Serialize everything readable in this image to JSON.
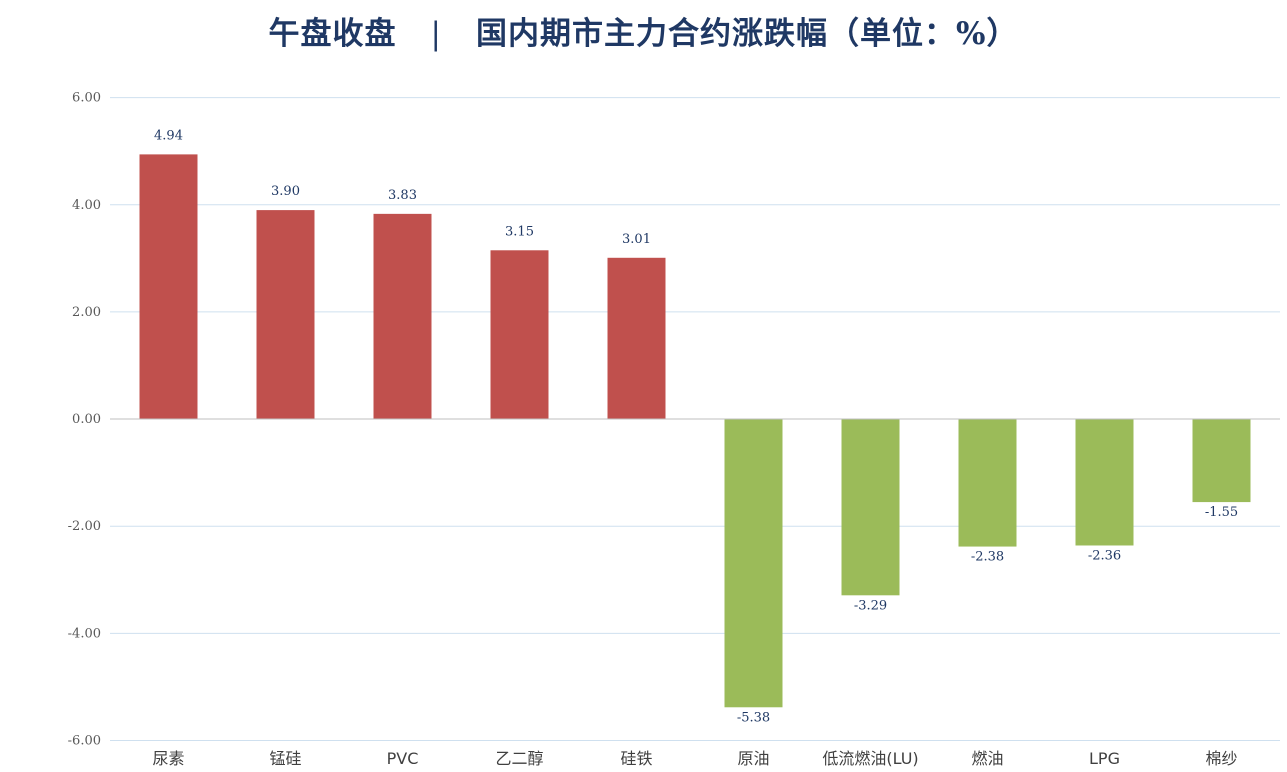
{
  "title": {
    "left": "午盘收盘",
    "separator": "|",
    "right": "国内期市主力合约涨跌幅（单位：%）"
  },
  "colors": {
    "positive": "#c0504d",
    "negative": "#9bbb59",
    "gridline": "#cfe0ef",
    "title": "#1f3864"
  },
  "chart_data": {
    "type": "bar",
    "categories": [
      "尿素",
      "锰硅",
      "PVC",
      "乙二醇",
      "硅铁",
      "原油",
      "低流燃油(LU)",
      "燃油",
      "LPG",
      "棉纱"
    ],
    "values": [
      4.94,
      3.9,
      3.83,
      3.15,
      3.01,
      -5.38,
      -3.29,
      -2.38,
      -2.36,
      -1.55
    ],
    "data_labels": [
      "4.94",
      "3.90",
      "3.83",
      "3.15",
      "3.01",
      "-5.38",
      "-3.29",
      "-2.38",
      "-2.36",
      "-1.55"
    ],
    "y_ticks": [
      "6.00",
      "4.00",
      "2.00",
      "0.00",
      "-2.00",
      "-4.00",
      "-6.00"
    ],
    "ylim": [
      -6,
      6
    ],
    "grid": true,
    "legend": "none"
  }
}
